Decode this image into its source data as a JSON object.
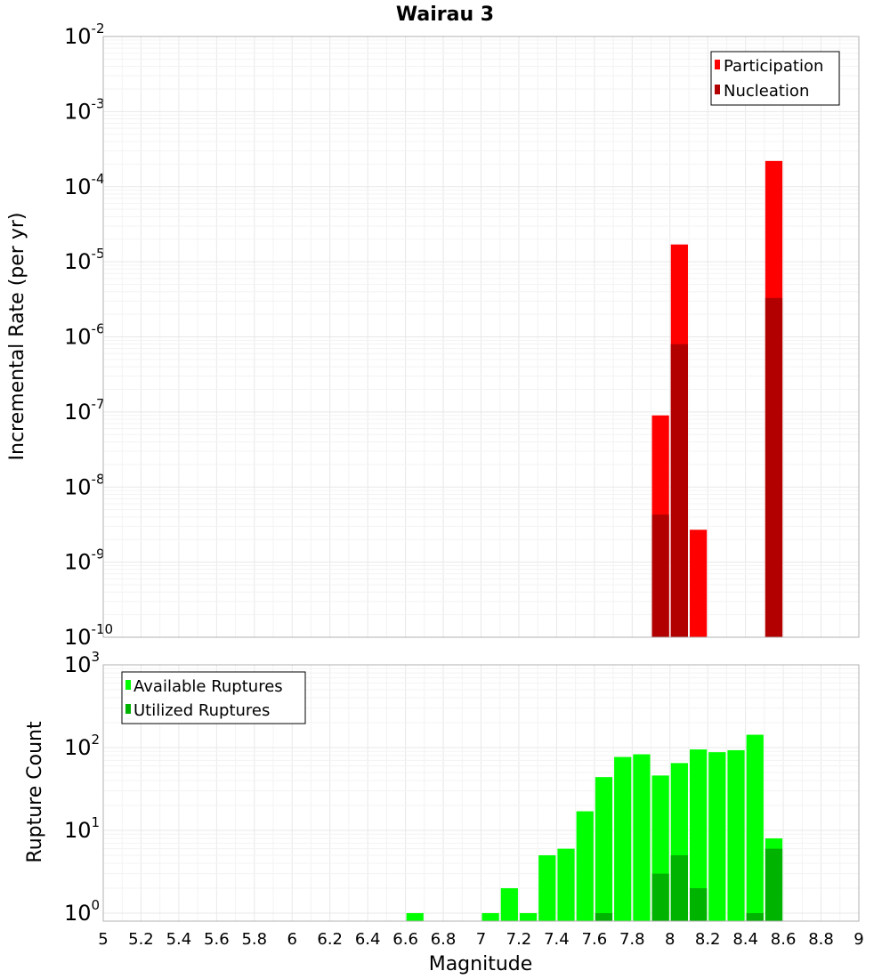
{
  "chart_data": [
    {
      "type": "bar",
      "title": "Wairau 3",
      "xlabel": "",
      "ylabel": "Incremental Rate (per yr)",
      "yscale": "log",
      "xlim": [
        5,
        9
      ],
      "ylim": [
        1e-10,
        0.01
      ],
      "grid": true,
      "legend_position": "top-right",
      "ytick_exponents": [
        "-10",
        "-9",
        "-8",
        "-7",
        "-6",
        "-5",
        "-4",
        "-3",
        "-2"
      ],
      "x": [
        7.95,
        8.05,
        8.15,
        8.55
      ],
      "series": [
        {
          "name": "Participation",
          "color": "#ff0000",
          "values": [
            9e-08,
            1.7e-05,
            2.7e-09,
            0.00022
          ]
        },
        {
          "name": "Nucleation",
          "color": "#b20000",
          "values": [
            4.3e-09,
            8e-07,
            0,
            3.3e-06
          ]
        }
      ]
    },
    {
      "type": "bar",
      "title": "",
      "xlabel": "Magnitude",
      "ylabel": "Rupture Count",
      "yscale": "log",
      "xlim": [
        5,
        9
      ],
      "ylim": [
        0.8,
        1000
      ],
      "grid": true,
      "legend_position": "top-left",
      "ytick_exponents": [
        "0",
        "1",
        "2",
        "3"
      ],
      "xticks": [
        "5",
        "5.2",
        "5.4",
        "5.6",
        "5.8",
        "6",
        "6.2",
        "6.4",
        "6.6",
        "6.8",
        "7",
        "7.2",
        "7.4",
        "7.6",
        "7.8",
        "8",
        "8.2",
        "8.4",
        "8.6",
        "8.8",
        "9"
      ],
      "x": [
        6.65,
        7.05,
        7.15,
        7.25,
        7.35,
        7.45,
        7.55,
        7.65,
        7.75,
        7.85,
        7.95,
        8.05,
        8.15,
        8.25,
        8.35,
        8.45,
        8.55
      ],
      "series": [
        {
          "name": "Available Ruptures",
          "color": "#00ff00",
          "values": [
            1,
            1,
            2,
            1,
            5,
            6,
            17,
            44,
            77,
            83,
            46,
            65,
            95,
            88,
            93,
            143,
            8
          ]
        },
        {
          "name": "Utilized Ruptures",
          "color": "#00b300",
          "values": [
            0,
            0,
            0,
            0,
            0,
            0,
            0,
            1,
            0,
            0,
            3,
            5,
            2,
            0,
            0,
            1,
            6
          ]
        }
      ]
    }
  ]
}
